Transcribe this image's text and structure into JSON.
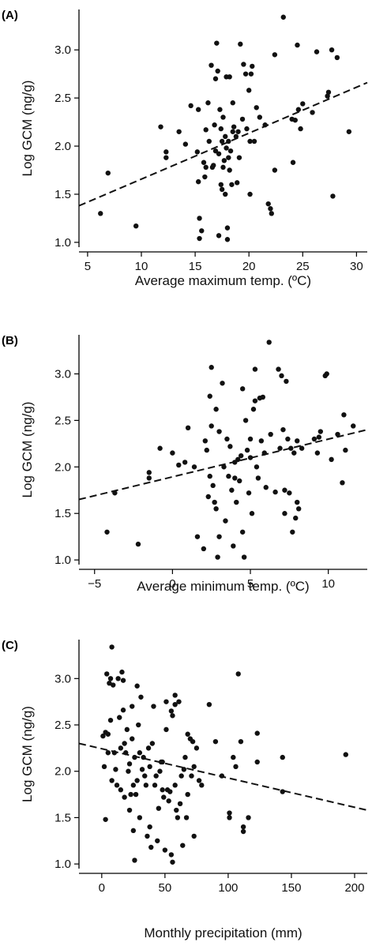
{
  "chart_data": [
    {
      "type": "scatter",
      "panel_label": "(A)",
      "xlabel": "Average maximum temp. (ºC)",
      "ylabel": "Log GCM (ng/g)",
      "xlim": [
        4.2,
        31
      ],
      "ylim": [
        0.95,
        3.42
      ],
      "xticks": [
        5,
        10,
        15,
        20,
        25,
        30
      ],
      "xtick_labels": [
        "5",
        "10",
        "15",
        "20",
        "25",
        "30"
      ],
      "yticks": [
        1.0,
        1.5,
        2.0,
        2.5,
        3.0
      ],
      "ytick_labels": [
        "1.0",
        "1.5",
        "2.0",
        "2.5",
        "3.0"
      ],
      "trend_line": {
        "style": "dashed",
        "x": [
          4.2,
          31
        ],
        "y": [
          1.38,
          2.66
        ]
      },
      "points": [
        [
          6.2,
          1.3
        ],
        [
          6.9,
          1.72
        ],
        [
          9.5,
          1.17
        ],
        [
          11.8,
          2.2
        ],
        [
          12.3,
          1.94
        ],
        [
          12.3,
          1.88
        ],
        [
          13.5,
          2.15
        ],
        [
          14.1,
          2.02
        ],
        [
          14.6,
          2.42
        ],
        [
          15.2,
          1.94
        ],
        [
          15.3,
          2.38
        ],
        [
          15.3,
          1.63
        ],
        [
          15.4,
          1.25
        ],
        [
          15.4,
          1.04
        ],
        [
          15.6,
          1.12
        ],
        [
          15.8,
          1.83
        ],
        [
          15.9,
          1.68
        ],
        [
          16.0,
          1.78
        ],
        [
          16.0,
          2.17
        ],
        [
          16.2,
          2.45
        ],
        [
          16.3,
          2.05
        ],
        [
          16.5,
          2.84
        ],
        [
          16.6,
          1.78
        ],
        [
          16.7,
          1.8
        ],
        [
          16.8,
          2.22
        ],
        [
          16.9,
          2.7
        ],
        [
          16.9,
          1.95
        ],
        [
          17.0,
          3.07
        ],
        [
          17.1,
          2.78
        ],
        [
          17.2,
          1.92
        ],
        [
          17.2,
          1.07
        ],
        [
          17.3,
          2.38
        ],
        [
          17.4,
          2.18
        ],
        [
          17.4,
          1.6
        ],
        [
          17.5,
          2.05
        ],
        [
          17.5,
          1.55
        ],
        [
          17.6,
          1.78
        ],
        [
          17.6,
          2.3
        ],
        [
          17.7,
          1.85
        ],
        [
          17.8,
          2.1
        ],
        [
          17.8,
          1.5
        ],
        [
          17.9,
          2.72
        ],
        [
          17.9,
          1.98
        ],
        [
          18.0,
          1.15
        ],
        [
          18.0,
          1.03
        ],
        [
          18.1,
          1.88
        ],
        [
          18.1,
          2.05
        ],
        [
          18.2,
          2.72
        ],
        [
          18.2,
          1.75
        ],
        [
          18.3,
          1.95
        ],
        [
          18.4,
          1.6
        ],
        [
          18.5,
          2.15
        ],
        [
          18.5,
          2.45
        ],
        [
          18.6,
          2.2
        ],
        [
          18.8,
          2.1
        ],
        [
          18.9,
          1.62
        ],
        [
          19.0,
          2.15
        ],
        [
          19.1,
          1.88
        ],
        [
          19.2,
          3.06
        ],
        [
          19.4,
          2.28
        ],
        [
          19.5,
          2.85
        ],
        [
          19.7,
          2.75
        ],
        [
          19.8,
          2.18
        ],
        [
          20.0,
          2.58
        ],
        [
          20.1,
          2.05
        ],
        [
          20.1,
          1.5
        ],
        [
          20.2,
          2.75
        ],
        [
          20.3,
          2.83
        ],
        [
          20.5,
          2.05
        ],
        [
          20.7,
          2.4
        ],
        [
          21.0,
          2.3
        ],
        [
          21.5,
          2.22
        ],
        [
          21.8,
          1.4
        ],
        [
          22.0,
          1.35
        ],
        [
          22.1,
          1.3
        ],
        [
          22.4,
          1.75
        ],
        [
          22.4,
          2.95
        ],
        [
          23.2,
          3.34
        ],
        [
          24.0,
          2.28
        ],
        [
          24.1,
          1.83
        ],
        [
          24.3,
          2.27
        ],
        [
          24.5,
          3.05
        ],
        [
          24.6,
          2.38
        ],
        [
          24.8,
          2.18
        ],
        [
          25.0,
          2.44
        ],
        [
          25.9,
          2.35
        ],
        [
          26.3,
          2.98
        ],
        [
          27.3,
          2.52
        ],
        [
          27.4,
          2.56
        ],
        [
          27.7,
          3.0
        ],
        [
          27.8,
          1.48
        ],
        [
          28.2,
          2.92
        ],
        [
          29.3,
          2.15
        ]
      ]
    },
    {
      "type": "scatter",
      "panel_label": "(B)",
      "xlabel": "Average minimum temp. (ºC)",
      "ylabel": "Log GCM (ng/g)",
      "xlim": [
        -6,
        12.5
      ],
      "ylim": [
        0.95,
        3.42
      ],
      "xticks": [
        -5,
        0,
        5,
        10
      ],
      "xtick_labels": [
        "−5",
        "0",
        "5",
        "10"
      ],
      "yticks": [
        1.0,
        1.5,
        2.0,
        2.5,
        3.0
      ],
      "ytick_labels": [
        "1.0",
        "1.5",
        "2.0",
        "2.5",
        "3.0"
      ],
      "trend_line": {
        "style": "dashed",
        "x": [
          -6,
          12.5
        ],
        "y": [
          1.65,
          2.4
        ]
      },
      "points": [
        [
          -4.2,
          1.3
        ],
        [
          -3.7,
          1.72
        ],
        [
          -2.2,
          1.17
        ],
        [
          -1.5,
          1.88
        ],
        [
          -1.5,
          1.94
        ],
        [
          -0.8,
          2.2
        ],
        [
          0.0,
          2.15
        ],
        [
          0.4,
          2.02
        ],
        [
          0.8,
          2.05
        ],
        [
          1.0,
          2.42
        ],
        [
          1.4,
          2.0
        ],
        [
          1.6,
          1.25
        ],
        [
          2.0,
          1.12
        ],
        [
          2.1,
          2.28
        ],
        [
          2.2,
          2.18
        ],
        [
          2.3,
          1.68
        ],
        [
          2.4,
          1.9
        ],
        [
          2.4,
          2.76
        ],
        [
          2.5,
          3.07
        ],
        [
          2.5,
          2.44
        ],
        [
          2.6,
          1.8
        ],
        [
          2.7,
          1.62
        ],
        [
          2.8,
          2.62
        ],
        [
          2.8,
          1.55
        ],
        [
          2.9,
          1.03
        ],
        [
          3.0,
          1.25
        ],
        [
          3.0,
          2.38
        ],
        [
          3.2,
          2.9
        ],
        [
          3.3,
          2.0
        ],
        [
          3.4,
          1.42
        ],
        [
          3.5,
          2.3
        ],
        [
          3.6,
          1.9
        ],
        [
          3.7,
          2.22
        ],
        [
          3.8,
          1.75
        ],
        [
          3.9,
          1.15
        ],
        [
          4.0,
          1.88
        ],
        [
          4.0,
          2.05
        ],
        [
          4.1,
          1.62
        ],
        [
          4.2,
          2.08
        ],
        [
          4.3,
          1.85
        ],
        [
          4.4,
          2.12
        ],
        [
          4.5,
          1.3
        ],
        [
          4.5,
          2.84
        ],
        [
          4.6,
          1.03
        ],
        [
          4.7,
          2.5
        ],
        [
          4.8,
          2.18
        ],
        [
          4.9,
          1.72
        ],
        [
          5.0,
          2.1
        ],
        [
          5.0,
          2.3
        ],
        [
          5.1,
          1.5
        ],
        [
          5.2,
          2.62
        ],
        [
          5.3,
          3.05
        ],
        [
          5.3,
          2.71
        ],
        [
          5.4,
          2.0
        ],
        [
          5.5,
          1.88
        ],
        [
          5.6,
          2.74
        ],
        [
          5.7,
          2.28
        ],
        [
          5.8,
          2.75
        ],
        [
          5.9,
          2.15
        ],
        [
          6.0,
          1.78
        ],
        [
          6.2,
          3.34
        ],
        [
          6.3,
          2.35
        ],
        [
          6.6,
          1.73
        ],
        [
          6.8,
          3.05
        ],
        [
          6.9,
          2.2
        ],
        [
          7.0,
          2.98
        ],
        [
          7.1,
          2.4
        ],
        [
          7.2,
          1.75
        ],
        [
          7.2,
          1.5
        ],
        [
          7.3,
          2.92
        ],
        [
          7.4,
          2.3
        ],
        [
          7.5,
          1.72
        ],
        [
          7.6,
          2.2
        ],
        [
          7.7,
          1.3
        ],
        [
          7.8,
          2.15
        ],
        [
          7.9,
          1.45
        ],
        [
          8.0,
          1.62
        ],
        [
          8.0,
          2.28
        ],
        [
          8.1,
          1.55
        ],
        [
          8.3,
          2.2
        ],
        [
          9.1,
          2.3
        ],
        [
          9.3,
          2.15
        ],
        [
          9.4,
          2.32
        ],
        [
          9.5,
          2.38
        ],
        [
          9.8,
          2.98
        ],
        [
          9.9,
          3.0
        ],
        [
          10.2,
          2.08
        ],
        [
          10.6,
          2.35
        ],
        [
          10.9,
          1.83
        ],
        [
          11.0,
          2.56
        ],
        [
          11.1,
          2.18
        ],
        [
          11.6,
          2.44
        ]
      ]
    },
    {
      "type": "scatter",
      "panel_label": "(C)",
      "xlabel": "Monthly precipitation (mm)",
      "ylabel": "Log GCM (ng/g)",
      "xlim": [
        -18,
        210
      ],
      "ylim": [
        0.95,
        3.42
      ],
      "xticks": [
        0,
        50,
        100,
        150,
        200
      ],
      "xtick_labels": [
        "0",
        "50",
        "100",
        "150",
        "200"
      ],
      "yticks": [
        1.0,
        1.5,
        2.0,
        2.5,
        3.0
      ],
      "ytick_labels": [
        "1.0",
        "1.5",
        "2.0",
        "2.5",
        "3.0"
      ],
      "trend_line": {
        "style": "dashed",
        "x": [
          -18,
          210
        ],
        "y": [
          2.3,
          1.58
        ]
      },
      "points": [
        [
          1,
          2.38
        ],
        [
          2,
          2.05
        ],
        [
          3,
          2.42
        ],
        [
          3,
          1.48
        ],
        [
          4,
          3.05
        ],
        [
          5,
          2.4
        ],
        [
          5,
          2.2
        ],
        [
          6,
          2.95
        ],
        [
          7,
          3.0
        ],
        [
          7,
          2.55
        ],
        [
          8,
          3.34
        ],
        [
          8,
          1.9
        ],
        [
          9,
          2.93
        ],
        [
          10,
          2.2
        ],
        [
          11,
          2.02
        ],
        [
          12,
          1.85
        ],
        [
          13,
          3.0
        ],
        [
          14,
          2.58
        ],
        [
          15,
          2.25
        ],
        [
          15,
          1.8
        ],
        [
          16,
          3.07
        ],
        [
          17,
          2.66
        ],
        [
          17,
          2.98
        ],
        [
          18,
          2.3
        ],
        [
          18,
          1.72
        ],
        [
          19,
          2.2
        ],
        [
          20,
          2.45
        ],
        [
          21,
          2.0
        ],
        [
          22,
          2.08
        ],
        [
          22,
          1.58
        ],
        [
          23,
          1.75
        ],
        [
          24,
          2.35
        ],
        [
          24,
          2.7
        ],
        [
          25,
          1.85
        ],
        [
          25,
          1.36
        ],
        [
          26,
          1.04
        ],
        [
          26,
          2.15
        ],
        [
          27,
          1.75
        ],
        [
          28,
          2.92
        ],
        [
          28,
          1.9
        ],
        [
          29,
          2.5
        ],
        [
          30,
          2.2
        ],
        [
          30,
          1.5
        ],
        [
          31,
          2.8
        ],
        [
          32,
          2.02
        ],
        [
          33,
          2.15
        ],
        [
          34,
          1.95
        ],
        [
          35,
          1.85
        ],
        [
          36,
          1.3
        ],
        [
          37,
          2.25
        ],
        [
          38,
          1.4
        ],
        [
          38,
          2.05
        ],
        [
          39,
          1.18
        ],
        [
          40,
          2.3
        ],
        [
          41,
          2.7
        ],
        [
          42,
          1.85
        ],
        [
          43,
          1.95
        ],
        [
          44,
          1.25
        ],
        [
          45,
          1.6
        ],
        [
          46,
          2.0
        ],
        [
          47,
          2.1
        ],
        [
          48,
          2.1
        ],
        [
          48,
          1.8
        ],
        [
          49,
          1.72
        ],
        [
          50,
          1.15
        ],
        [
          51,
          2.75
        ],
        [
          51,
          2.45
        ],
        [
          52,
          1.8
        ],
        [
          53,
          1.68
        ],
        [
          54,
          1.78
        ],
        [
          55,
          2.65
        ],
        [
          55,
          1.1
        ],
        [
          56,
          2.6
        ],
        [
          56,
          1.02
        ],
        [
          58,
          1.85
        ],
        [
          58,
          2.82
        ],
        [
          58,
          2.72
        ],
        [
          59,
          1.58
        ],
        [
          60,
          1.5
        ],
        [
          61,
          2.75
        ],
        [
          62,
          1.65
        ],
        [
          63,
          1.95
        ],
        [
          64,
          1.2
        ],
        [
          65,
          2.02
        ],
        [
          66,
          2.15
        ],
        [
          67,
          1.5
        ],
        [
          68,
          2.4
        ],
        [
          68,
          1.75
        ],
        [
          70,
          2.35
        ],
        [
          71,
          1.95
        ],
        [
          72,
          2.32
        ],
        [
          73,
          2.05
        ],
        [
          73,
          1.3
        ],
        [
          75,
          2.25
        ],
        [
          77,
          1.9
        ],
        [
          79,
          1.85
        ],
        [
          85,
          2.72
        ],
        [
          90,
          2.32
        ],
        [
          95,
          1.95
        ],
        [
          101,
          1.55
        ],
        [
          101,
          1.5
        ],
        [
          104,
          2.15
        ],
        [
          106,
          2.05
        ],
        [
          108,
          3.05
        ],
        [
          110,
          2.32
        ],
        [
          112,
          1.4
        ],
        [
          112,
          1.35
        ],
        [
          116,
          1.5
        ],
        [
          123,
          2.41
        ],
        [
          123,
          2.1
        ],
        [
          143,
          2.15
        ],
        [
          143,
          1.78
        ],
        [
          193,
          2.18
        ]
      ]
    }
  ]
}
